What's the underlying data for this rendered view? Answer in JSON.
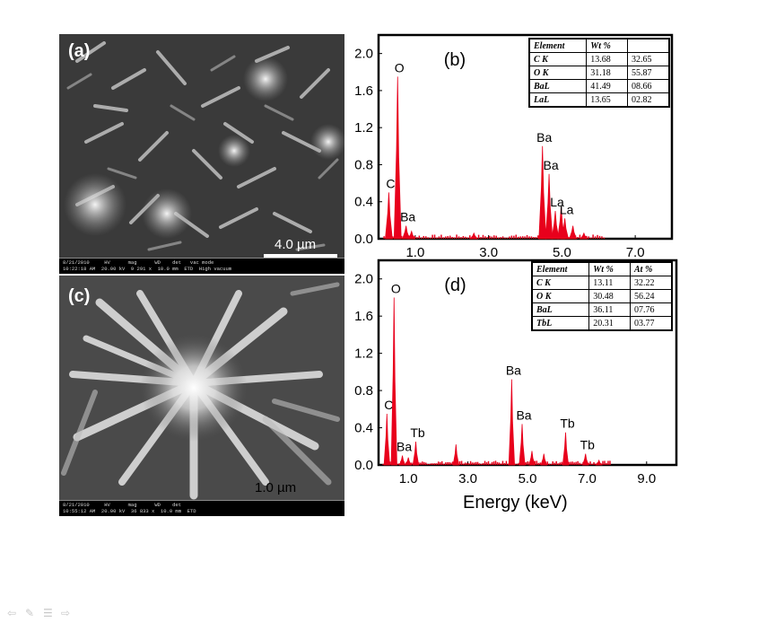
{
  "panels": {
    "a": {
      "label": "(a)",
      "scale_text": "4.0 µm",
      "info_line1": "8/21/2010     HV      mag      WD    det   vac mode",
      "info_line2": "10:22:18 AM  20.00 kV  9 291 x  10.0 mm  ETD  High vacuum"
    },
    "c": {
      "label": "(c)",
      "scale_text": "1.0 µm",
      "info_line1": "8/21/2010     HV      mag      WD    det",
      "info_line2": "10:55:12 AM  20.00 kV  36 833 x  10.0 mm  ETD"
    }
  },
  "table_b": {
    "headers": [
      "Element",
      "Wt %",
      ""
    ],
    "rows": [
      [
        "C K",
        "13.68",
        "32.65"
      ],
      [
        "O K",
        "31.18",
        "55.87"
      ],
      [
        "BaL",
        "41.49",
        "08.66"
      ],
      [
        "LaL",
        "13.65",
        "02.82"
      ]
    ]
  },
  "table_d": {
    "headers": [
      "Element",
      "Wt %",
      "At %"
    ],
    "rows": [
      [
        "C K",
        "13.11",
        "32.22"
      ],
      [
        "O K",
        "30.48",
        "56.24"
      ],
      [
        "BaL",
        "36.11",
        "07.76"
      ],
      [
        "TbL",
        "20.31",
        "03.77"
      ]
    ]
  },
  "xlabel": "Energy (keV)",
  "colors": {
    "spectrum": "#e8001c",
    "frame": "#000000"
  },
  "nav_icons": [
    "prev-arrow-icon",
    "pen-icon",
    "menu-icon",
    "next-arrow-icon"
  ],
  "chart_data": [
    {
      "type": "area",
      "panel_label": "(b)",
      "xlim": [
        0,
        8
      ],
      "ylim": [
        0,
        2.2
      ],
      "yticks": [
        "0.0",
        "0.4",
        "0.8",
        "1.2",
        "1.6",
        "2.0"
      ],
      "xticks": [
        "1.0",
        "3.0",
        "5.0",
        "7.0"
      ],
      "peaks": [
        {
          "x": 0.28,
          "y": 0.5,
          "label": "C"
        },
        {
          "x": 0.52,
          "y": 1.75,
          "label": "O"
        },
        {
          "x": 0.75,
          "y": 0.14,
          "label": "Ba"
        },
        {
          "x": 0.9,
          "y": 0.08,
          "label": ""
        },
        {
          "x": 2.6,
          "y": 0.06,
          "label": ""
        },
        {
          "x": 4.47,
          "y": 1.0,
          "label": "Ba"
        },
        {
          "x": 4.65,
          "y": 0.7,
          "label": "Ba"
        },
        {
          "x": 4.82,
          "y": 0.3,
          "label": "La"
        },
        {
          "x": 4.98,
          "y": 0.35,
          "label": ""
        },
        {
          "x": 5.08,
          "y": 0.22,
          "label": "La"
        },
        {
          "x": 5.3,
          "y": 0.14,
          "label": ""
        },
        {
          "x": 5.6,
          "y": 0.06,
          "label": ""
        }
      ]
    },
    {
      "type": "area",
      "panel_label": "(d)",
      "xlim": [
        0,
        10
      ],
      "ylim": [
        0,
        2.2
      ],
      "yticks": [
        "0.0",
        "0.4",
        "0.8",
        "1.2",
        "1.6",
        "2.0"
      ],
      "xticks": [
        "1.0",
        "3.0",
        "5.0",
        "7.0",
        "9.0"
      ],
      "xlabel": "Energy (keV)",
      "peaks": [
        {
          "x": 0.28,
          "y": 0.55,
          "label": "C"
        },
        {
          "x": 0.52,
          "y": 1.8,
          "label": "O"
        },
        {
          "x": 0.8,
          "y": 0.1,
          "label": "Ba"
        },
        {
          "x": 1.0,
          "y": 0.08,
          "label": ""
        },
        {
          "x": 1.25,
          "y": 0.25,
          "label": "Tb"
        },
        {
          "x": 2.6,
          "y": 0.22,
          "label": ""
        },
        {
          "x": 4.47,
          "y": 0.92,
          "label": "Ba"
        },
        {
          "x": 4.82,
          "y": 0.44,
          "label": "Ba"
        },
        {
          "x": 5.15,
          "y": 0.15,
          "label": ""
        },
        {
          "x": 5.55,
          "y": 0.12,
          "label": ""
        },
        {
          "x": 6.28,
          "y": 0.35,
          "label": "Tb"
        },
        {
          "x": 6.95,
          "y": 0.12,
          "label": "Tb"
        },
        {
          "x": 7.4,
          "y": 0.05,
          "label": ""
        }
      ]
    }
  ]
}
